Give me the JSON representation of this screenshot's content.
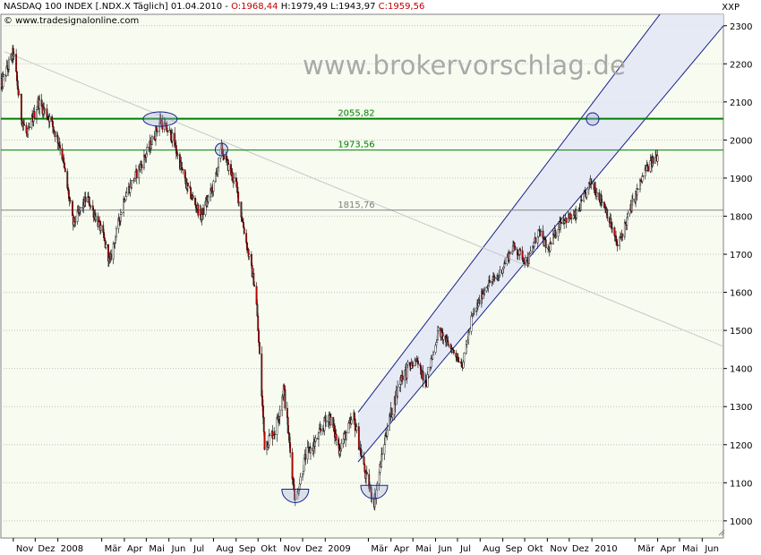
{
  "header": {
    "instrument": "NASDAQ 100 INDEX [.NDX.X  Täglich] 01.04.2010 - ",
    "open": "O:1968,44",
    "high": "H:1979,49",
    "low": "L:1943,97",
    "close": "C:1959,56",
    "copyright": "© www.tradesignalonline.com",
    "currency": "XXP"
  },
  "watermark": "www.brokervorschlag.de",
  "colors": {
    "up_candle": "#ffffff",
    "down_candle": "#cc0000",
    "wick": "#000000",
    "major_level": "#008000",
    "neutral_level": "#808080",
    "channel_fill": "#e3e6f6",
    "channel_line": "#1a1f8c",
    "grid": "#c0c0c0",
    "plot_bg": "#f7fbf0"
  },
  "chart_data": {
    "type": "candlestick",
    "title": "NASDAQ 100 INDEX",
    "y_axis": {
      "ylim": [
        955,
        2330
      ],
      "ticks": [
        1000,
        1100,
        1200,
        1300,
        1400,
        1500,
        1600,
        1700,
        1800,
        1900,
        2000,
        2100,
        2200,
        2300
      ],
      "position": "right"
    },
    "x_axis": {
      "tick_labels": [
        "Nov",
        "Dez",
        "2008",
        "Mär",
        "Apr",
        "Mai",
        "Jun",
        "Jul",
        "Aug",
        "Sep",
        "Okt",
        "Nov",
        "Dez",
        "2009",
        "Mär",
        "Apr",
        "Mai",
        "Jun",
        "Jul",
        "Aug",
        "Sep",
        "Okt",
        "Nov",
        "Dez",
        "2010",
        "Mär",
        "Apr",
        "Mai",
        "Jun"
      ],
      "range": [
        "2007-10-15",
        "2010-06-30"
      ]
    },
    "grid": true,
    "horizontal_levels": [
      {
        "label": "2055,82",
        "value": 2055.82,
        "style": "major"
      },
      {
        "label": "1973,56",
        "value": 1973.56,
        "style": "major"
      },
      {
        "label": "1815,76",
        "value": 1815.76,
        "style": "neutral"
      }
    ],
    "trendline": {
      "from": {
        "date": "2007-10-20",
        "value": 2232
      },
      "to": {
        "date": "2010-06-30",
        "value": 1458
      }
    },
    "channel": {
      "lower": {
        "from": {
          "date": "2009-02-15",
          "value": 1155
        },
        "to": {
          "date": "2010-06-30",
          "value": 2300
        }
      },
      "upper": {
        "from": {
          "date": "2009-02-15",
          "value": 1285
        },
        "to": {
          "date": "2010-06-30",
          "value": 2550
        }
      }
    },
    "markers": [
      {
        "shape": "ellipse",
        "date": "2008-05-20",
        "value": 2055
      },
      {
        "shape": "circle",
        "date": "2008-08-12",
        "value": 1975
      },
      {
        "shape": "circle",
        "date": "2010-01-02",
        "value": 2055
      },
      {
        "shape": "bowl",
        "date": "2008-11-21",
        "value": 1055
      },
      {
        "shape": "bowl",
        "date": "2009-03-09",
        "value": 1065
      }
    ],
    "price_path": [
      {
        "date": "2007-10-15",
        "value": 2140
      },
      {
        "date": "2007-11-01",
        "value": 2230
      },
      {
        "date": "2007-11-12",
        "value": 2060
      },
      {
        "date": "2007-11-20",
        "value": 2010
      },
      {
        "date": "2007-12-05",
        "value": 2100
      },
      {
        "date": "2007-12-20",
        "value": 2060
      },
      {
        "date": "2008-01-05",
        "value": 1980
      },
      {
        "date": "2008-01-22",
        "value": 1780
      },
      {
        "date": "2008-02-10",
        "value": 1850
      },
      {
        "date": "2008-03-01",
        "value": 1760
      },
      {
        "date": "2008-03-12",
        "value": 1680
      },
      {
        "date": "2008-04-01",
        "value": 1850
      },
      {
        "date": "2008-04-20",
        "value": 1920
      },
      {
        "date": "2008-05-05",
        "value": 1980
      },
      {
        "date": "2008-05-20",
        "value": 2050
      },
      {
        "date": "2008-06-05",
        "value": 2010
      },
      {
        "date": "2008-06-25",
        "value": 1880
      },
      {
        "date": "2008-07-15",
        "value": 1800
      },
      {
        "date": "2008-08-01",
        "value": 1880
      },
      {
        "date": "2008-08-12",
        "value": 1975
      },
      {
        "date": "2008-09-01",
        "value": 1880
      },
      {
        "date": "2008-09-15",
        "value": 1730
      },
      {
        "date": "2008-09-28",
        "value": 1600
      },
      {
        "date": "2008-10-10",
        "value": 1200
      },
      {
        "date": "2008-10-25",
        "value": 1240
      },
      {
        "date": "2008-11-05",
        "value": 1350
      },
      {
        "date": "2008-11-21",
        "value": 1050
      },
      {
        "date": "2008-12-05",
        "value": 1170
      },
      {
        "date": "2008-12-20",
        "value": 1210
      },
      {
        "date": "2009-01-06",
        "value": 1280
      },
      {
        "date": "2009-01-20",
        "value": 1190
      },
      {
        "date": "2009-02-09",
        "value": 1270
      },
      {
        "date": "2009-02-25",
        "value": 1120
      },
      {
        "date": "2009-03-09",
        "value": 1050
      },
      {
        "date": "2009-03-25",
        "value": 1230
      },
      {
        "date": "2009-04-15",
        "value": 1380
      },
      {
        "date": "2009-05-05",
        "value": 1420
      },
      {
        "date": "2009-05-20",
        "value": 1370
      },
      {
        "date": "2009-06-05",
        "value": 1500
      },
      {
        "date": "2009-07-08",
        "value": 1410
      },
      {
        "date": "2009-07-20",
        "value": 1530
      },
      {
        "date": "2009-08-10",
        "value": 1620
      },
      {
        "date": "2009-08-25",
        "value": 1640
      },
      {
        "date": "2009-09-15",
        "value": 1720
      },
      {
        "date": "2009-10-05",
        "value": 1680
      },
      {
        "date": "2009-10-20",
        "value": 1760
      },
      {
        "date": "2009-11-02",
        "value": 1710
      },
      {
        "date": "2009-11-20",
        "value": 1790
      },
      {
        "date": "2009-12-10",
        "value": 1800
      },
      {
        "date": "2009-12-31",
        "value": 1890
      },
      {
        "date": "2010-01-20",
        "value": 1820
      },
      {
        "date": "2010-02-05",
        "value": 1720
      },
      {
        "date": "2010-02-25",
        "value": 1830
      },
      {
        "date": "2010-03-15",
        "value": 1920
      },
      {
        "date": "2010-04-01",
        "value": 1960
      }
    ]
  }
}
